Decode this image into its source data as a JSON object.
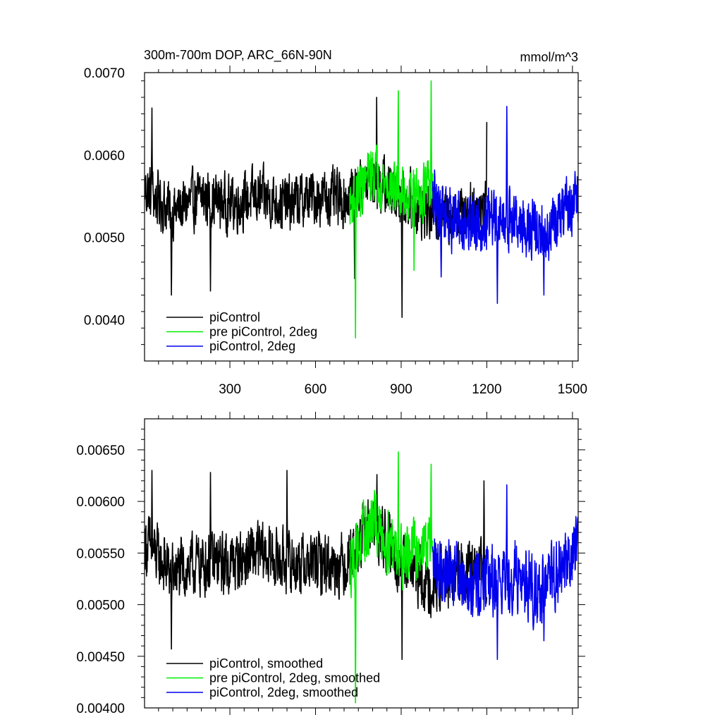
{
  "chart_data": [
    {
      "type": "line",
      "title": "300m-700m DOP, ARC_66N-90N",
      "units_label": "mmol/m^3",
      "xlim": [
        1,
        1520
      ],
      "ylim": [
        0.0035,
        0.007
      ],
      "x_ticks": [
        300,
        600,
        900,
        1200,
        1500
      ],
      "x_tick_labels": [
        "300",
        "600",
        "900",
        "1200",
        "1500"
      ],
      "y_ticks": [
        0.004,
        0.005,
        0.006,
        0.007
      ],
      "y_tick_labels": [
        "0.0040",
        "0.0050",
        "0.0060",
        "0.0070"
      ],
      "grid": false,
      "legend": "bottom-left",
      "colors": {
        "black": "#000000",
        "green": "#00ee00",
        "blue": "#0000ee"
      },
      "series": [
        {
          "name": "piControl",
          "color": "#000000",
          "x_range": [
            1,
            1200
          ],
          "level_points": {
            "x": [
              1,
              100,
              200,
              300,
              400,
              500,
              600,
              700,
              800,
              900,
              1000,
              1100,
              1200
            ],
            "y": [
              0.0056,
              0.0053,
              0.0055,
              0.0054,
              0.0055,
              0.0054,
              0.0055,
              0.00545,
              0.0057,
              0.0055,
              0.0053,
              0.0053,
              0.0054
            ]
          },
          "amplitude": 0.0004,
          "extremes": {
            "x": [
              27,
              95,
              232,
              737,
              814,
              903,
              1200
            ],
            "y": [
              0.00657,
              0.0043,
              0.00435,
              0.0045,
              0.0067,
              0.00403,
              0.0064
            ]
          }
        },
        {
          "name": "pre piControl, 2deg",
          "color": "#00ee00",
          "x_range": [
            720,
            1010
          ],
          "level_points": {
            "x": [
              720,
              800,
              900,
              1010
            ],
            "y": [
              0.0054,
              0.0058,
              0.0055,
              0.0056
            ]
          },
          "amplitude": 0.0004,
          "extremes": {
            "x": [
              740,
              890,
              945,
              1005
            ],
            "y": [
              0.00378,
              0.00678,
              0.0046,
              0.0069
            ]
          }
        },
        {
          "name": "piControl, 2deg",
          "color": "#0000ee",
          "x_range": [
            1010,
            1520
          ],
          "level_points": {
            "x": [
              1010,
              1100,
              1200,
              1300,
              1400,
              1520
            ],
            "y": [
              0.0054,
              0.0052,
              0.0052,
              0.0052,
              0.005,
              0.0055
            ]
          },
          "amplitude": 0.00045,
          "extremes": {
            "x": [
              1040,
              1237,
              1270,
              1400
            ],
            "y": [
              0.00452,
              0.0042,
              0.00659,
              0.0043
            ]
          }
        }
      ]
    },
    {
      "type": "line",
      "title": "",
      "xlim": [
        1,
        1520
      ],
      "ylim": [
        0.004,
        0.0068
      ],
      "x_ticks": [
        300,
        600,
        900,
        1200,
        1500
      ],
      "y_ticks": [
        0.004,
        0.0045,
        0.005,
        0.0055,
        0.006,
        0.0065
      ],
      "y_tick_labels": [
        "0.00400",
        "0.00450",
        "0.00500",
        "0.00550",
        "0.00600",
        "0.00650"
      ],
      "grid": false,
      "legend": "bottom-left",
      "series": [
        {
          "name": "piControl, smoothed",
          "color": "#000000",
          "x_range": [
            1,
            1200
          ],
          "level_points": {
            "x": [
              1,
              100,
              200,
              300,
              400,
              500,
              600,
              700,
              800,
              900,
              1000,
              1100,
              1200
            ],
            "y": [
              0.0056,
              0.0053,
              0.0054,
              0.0054,
              0.0055,
              0.0054,
              0.0054,
              0.0054,
              0.0058,
              0.0054,
              0.0052,
              0.0053,
              0.0053
            ]
          },
          "amplitude": 0.00035,
          "extremes": {
            "x": [
              27,
              95,
              232,
              500,
              815,
              903,
              1190
            ],
            "y": [
              0.0063,
              0.00457,
              0.00628,
              0.0063,
              0.00626,
              0.00447,
              0.0062
            ]
          }
        },
        {
          "name": "pre piControl, 2deg, smoothed",
          "color": "#00ee00",
          "x_range": [
            720,
            1010
          ],
          "level_points": {
            "x": [
              720,
              800,
              900,
              1010
            ],
            "y": [
              0.0054,
              0.0058,
              0.0055,
              0.0056
            ]
          },
          "amplitude": 0.00035,
          "extremes": {
            "x": [
              740,
              890,
              1005
            ],
            "y": [
              0.00405,
              0.00648,
              0.00636
            ]
          }
        },
        {
          "name": "piControl, 2deg, smoothed",
          "color": "#0000ee",
          "x_range": [
            1010,
            1520
          ],
          "level_points": {
            "x": [
              1010,
              1100,
              1200,
              1300,
              1400,
              1520
            ],
            "y": [
              0.0054,
              0.0053,
              0.0052,
              0.0053,
              0.0051,
              0.0056
            ]
          },
          "amplitude": 0.0004,
          "extremes": {
            "x": [
              1237,
              1270,
              1400
            ],
            "y": [
              0.00447,
              0.00616,
              0.00465
            ]
          }
        }
      ]
    }
  ]
}
